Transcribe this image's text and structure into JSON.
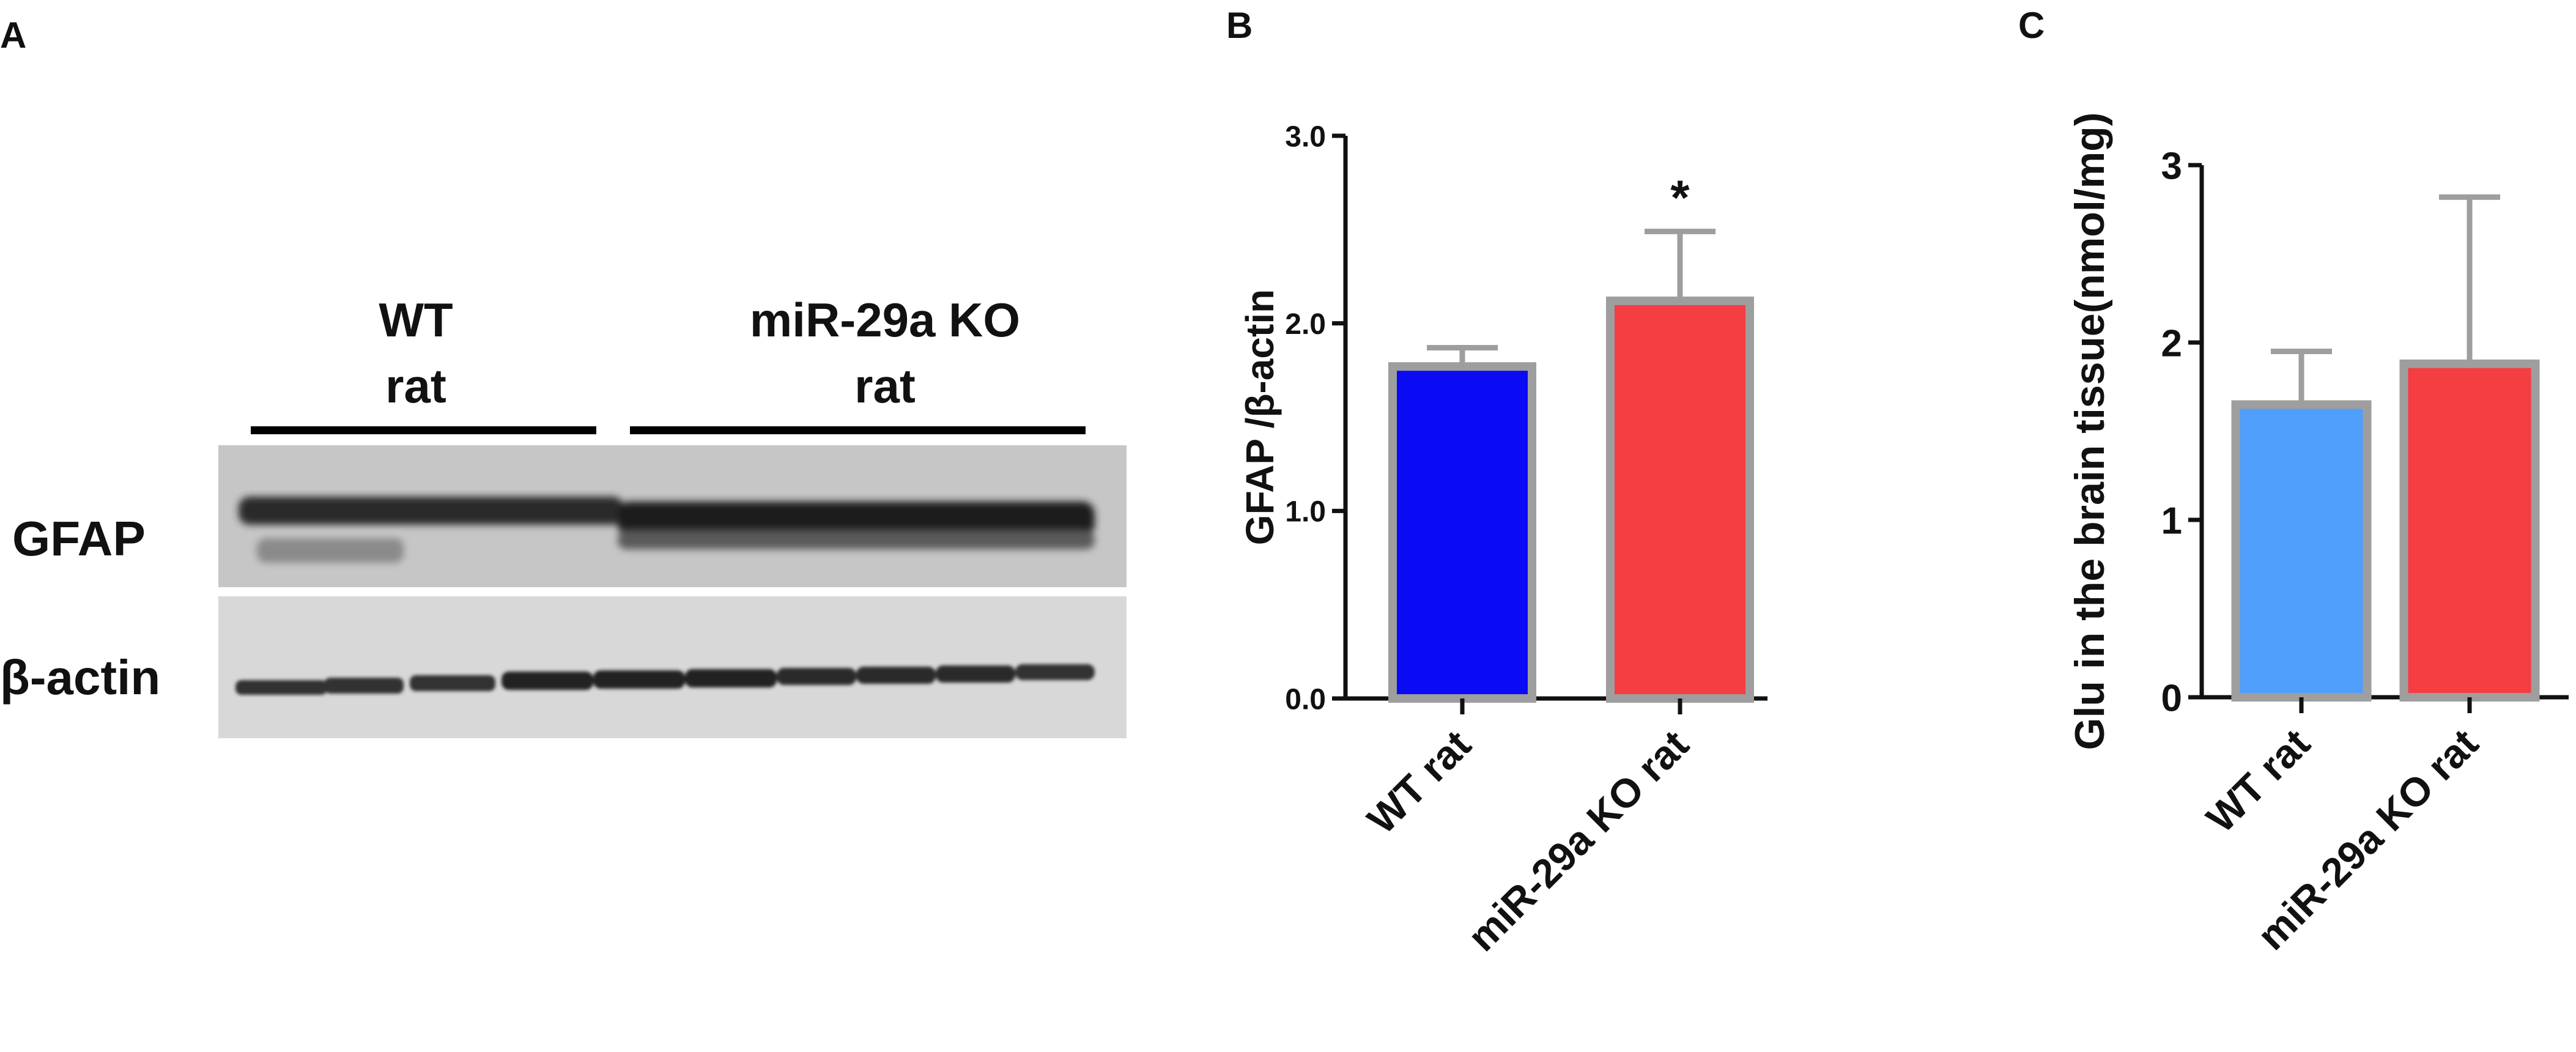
{
  "panels": {
    "a": {
      "letter": "A"
    },
    "b": {
      "letter": "B"
    },
    "c": {
      "letter": "C"
    }
  },
  "blot": {
    "groups": [
      {
        "line1": "WT",
        "line2": "rat"
      },
      {
        "line1": "miR-29a KO",
        "line2": "rat"
      }
    ],
    "rows": [
      "GFAP",
      "β-actin"
    ]
  },
  "chart_data": [
    {
      "type": "bar",
      "title": "",
      "xlabel": "",
      "ylabel": "GFAP /β-actin",
      "categories": [
        "WT rat",
        "miR-29a KO rat"
      ],
      "values": [
        1.77,
        2.12
      ],
      "errors": [
        0.1,
        0.37
      ],
      "colors": [
        "#0a0af5",
        "#f43e42"
      ],
      "ylim": [
        0,
        3.0
      ],
      "ticks": [
        "0.0",
        "1.0",
        "2.0",
        "3.0"
      ],
      "annotation": "*",
      "annotation_category": "miR-29a KO rat"
    },
    {
      "type": "bar",
      "title": "",
      "xlabel": "",
      "ylabel": "Glu in the brain tissue(nmol/mg)",
      "categories": [
        "WT rat",
        "miR-29a KO rat"
      ],
      "values": [
        1.65,
        1.88
      ],
      "errors": [
        0.3,
        0.94
      ],
      "colors": [
        "#4f9efb",
        "#f43e42"
      ],
      "ylim": [
        0,
        3
      ],
      "ticks": [
        "0",
        "1",
        "2",
        "3"
      ]
    }
  ]
}
